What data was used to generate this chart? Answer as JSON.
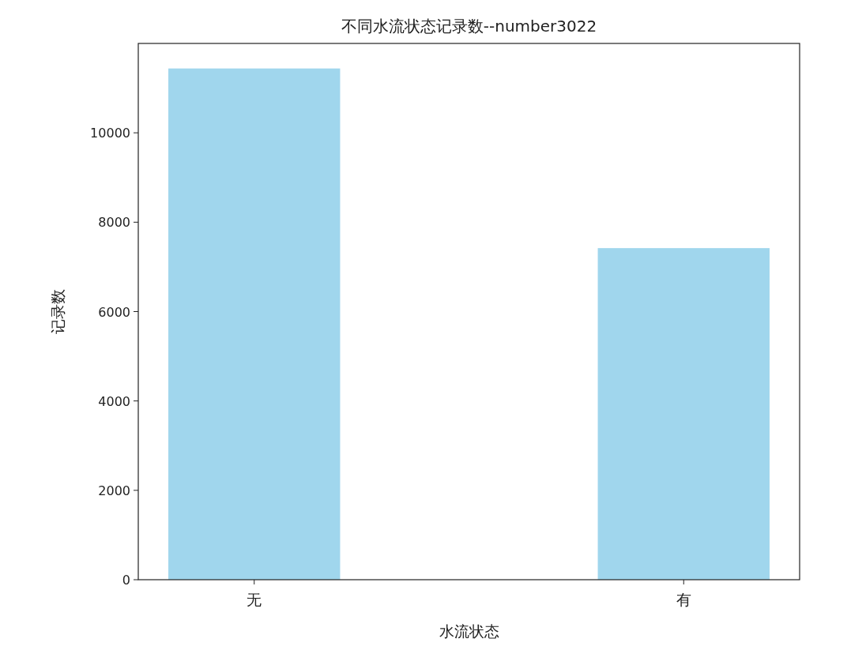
{
  "chart_data": {
    "type": "bar",
    "title": "不同水流状态记录数--number3022",
    "xlabel": "水流状态",
    "ylabel": "记录数",
    "categories": [
      "无",
      "有"
    ],
    "series": [
      {
        "color": "#a0d6ed",
        "values": [
          11440,
          7420
        ]
      }
    ],
    "ylim": [
      0,
      12000
    ],
    "yticks": [
      0,
      2000,
      4000,
      6000,
      8000,
      10000
    ],
    "grid": false
  }
}
